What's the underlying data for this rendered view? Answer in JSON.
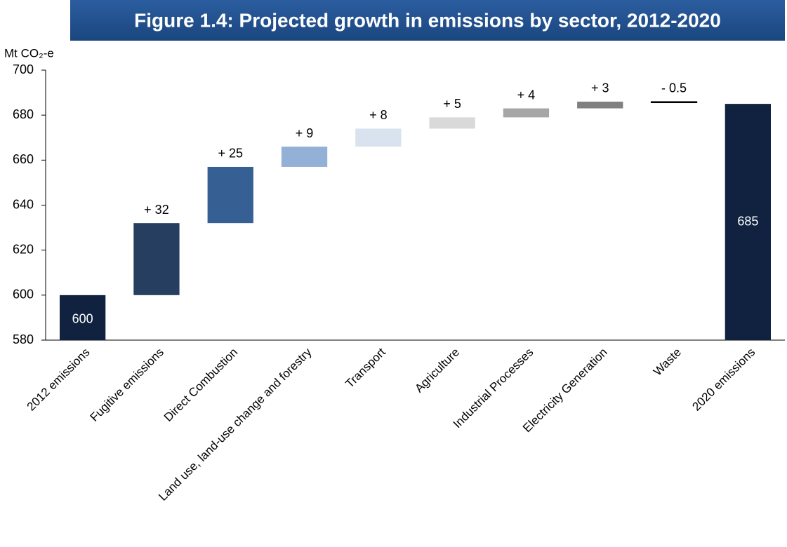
{
  "chart_data": {
    "type": "waterfall",
    "title": "Figure 1.4: Projected growth in emissions by sector, 2012-2020",
    "y_label": "Mt CO₂-e",
    "categories": [
      "2012 emissions",
      "Fugitive emissions",
      "Direct Combustion",
      "Land use, land-use change and forestry",
      "Transport",
      "Agriculture",
      "Industrial Processes",
      "Electricity Generation",
      "Waste",
      "2020 emissions"
    ],
    "values": [
      600,
      32,
      25,
      9,
      8,
      5,
      4,
      3,
      -0.5,
      685
    ],
    "value_labels": [
      "600",
      "+ 32",
      "+ 25",
      "+ 9",
      "+ 8",
      "+ 5",
      "+ 4",
      "+ 3",
      "- 0.5",
      "685"
    ],
    "colors": [
      "#10223f",
      "#263f61",
      "#365f93",
      "#93b1d7",
      "#d9e3ef",
      "#d9d9d9",
      "#a6a6a6",
      "#808080",
      "#000000",
      "#10223f"
    ],
    "ylim": [
      580,
      700
    ],
    "yticks": [
      580,
      600,
      620,
      640,
      660,
      680,
      700
    ],
    "grid": false
  }
}
